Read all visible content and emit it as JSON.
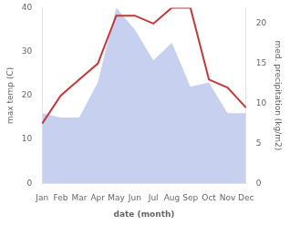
{
  "chart_data": {
    "type": "line",
    "categories": [
      "Jan",
      "Feb",
      "Mar",
      "Apr",
      "May",
      "Jun",
      "Jul",
      "Aug",
      "Sep",
      "Oct",
      "Nov",
      "Dec"
    ],
    "xlabel": "date (month)",
    "ylabel": "max temp (C)",
    "y2label": "med. precipitation (kg/m2)",
    "series": [
      {
        "type": "area",
        "color": "#c8d0f0",
        "values": [
          16,
          15,
          15,
          23,
          40,
          35,
          28,
          32,
          22,
          23,
          16,
          16
        ]
      },
      {
        "type": "line",
        "color": "#c0393b",
        "axis": "y2",
        "values": [
          7.5,
          11,
          13,
          15,
          21,
          21,
          20,
          22,
          22,
          13,
          12,
          9.5
        ]
      }
    ],
    "ylim": [
      0,
      40
    ],
    "yticks": [
      0,
      10,
      20,
      30,
      40
    ],
    "y2lim": [
      0,
      22
    ],
    "y2ticks": [
      0,
      5,
      10,
      15,
      20
    ],
    "grid": false
  }
}
